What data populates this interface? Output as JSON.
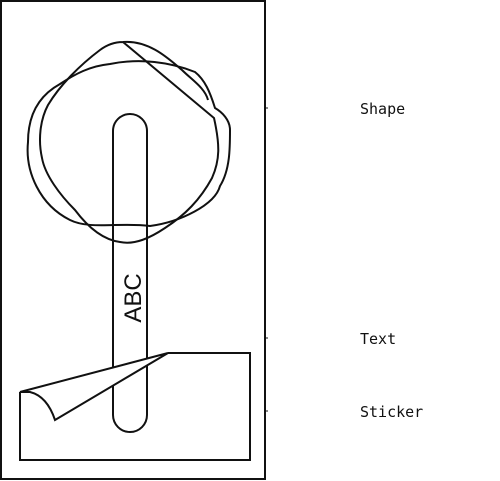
{
  "labels": {
    "shape": "Shape",
    "text": "Text",
    "sticker": "Sticker"
  },
  "sticker_text": "ABC",
  "colors": {
    "stroke": "#111111",
    "background": "#ffffff"
  }
}
